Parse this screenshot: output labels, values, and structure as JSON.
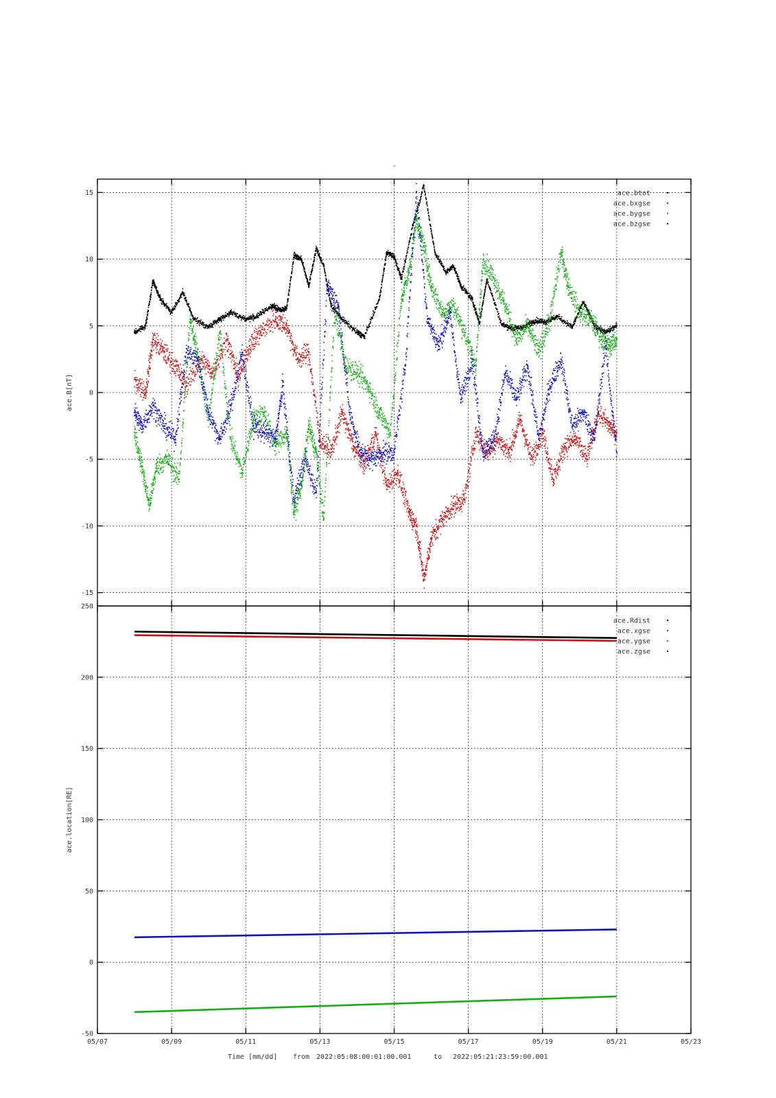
{
  "figure": {
    "title": "-",
    "footer": {
      "time_label": "Time [mm/dd]",
      "from_label": "from",
      "from_value": "2022:05:08:00:01:00.001",
      "to_label": "to",
      "to_value": "2022:05:21:23:59:00.001"
    }
  },
  "chart_data": [
    {
      "type": "scatter",
      "id": "magnetic-field",
      "ylabel": "ace.B[nT]",
      "xlim": [
        0,
        16
      ],
      "ylim": [
        -16,
        16
      ],
      "x_ticks": [
        0,
        2,
        4,
        6,
        8,
        10,
        12,
        14,
        16
      ],
      "x_tick_labels": [
        "05/07",
        "05/09",
        "05/11",
        "05/13",
        "05/15",
        "05/17",
        "05/19",
        "05/21",
        "05/23"
      ],
      "y_ticks": [
        -15,
        -10,
        -5,
        0,
        5,
        10,
        15
      ],
      "y_tick_labels": [
        "-15",
        "-10",
        "-5",
        "0",
        "5",
        "10",
        "15"
      ],
      "grid": true,
      "legend_position": "top-right",
      "x_unit": "days since 2022-05-07",
      "series": [
        {
          "name": "ace.btot",
          "color": "#000000",
          "x": [
            1.0,
            1.3,
            1.5,
            1.7,
            2.0,
            2.3,
            2.6,
            3.0,
            3.3,
            3.6,
            4.0,
            4.3,
            4.7,
            4.9,
            5.1,
            5.3,
            5.5,
            5.7,
            5.9,
            6.1,
            6.3,
            6.6,
            7.0,
            7.2,
            7.6,
            7.8,
            8.0,
            8.2,
            8.5,
            8.8,
            9.1,
            9.4,
            9.6,
            9.8,
            10.1,
            10.3,
            10.5,
            10.9,
            11.2,
            11.5,
            11.8,
            12.1,
            12.4,
            12.8,
            13.1,
            13.4,
            13.7,
            14.0
          ],
          "y": [
            4.5,
            5.0,
            8.4,
            7.0,
            6.0,
            7.5,
            5.5,
            4.9,
            5.5,
            6.0,
            5.5,
            5.7,
            6.5,
            6.2,
            6.3,
            10.3,
            10.0,
            8.0,
            10.8,
            9.5,
            6.5,
            5.5,
            4.5,
            4.2,
            7.0,
            10.5,
            10.2,
            8.5,
            12.5,
            15.5,
            10.5,
            9.0,
            9.5,
            8.0,
            7.0,
            5.2,
            8.5,
            5.1,
            4.8,
            4.9,
            5.4,
            5.3,
            5.7,
            4.9,
            6.8,
            5.0,
            4.5,
            5.0
          ]
        },
        {
          "name": "ace.bxgse",
          "color": "#d01010",
          "x": [
            1.0,
            1.3,
            1.5,
            1.8,
            2.1,
            2.4,
            2.8,
            3.1,
            3.5,
            3.8,
            4.1,
            4.4,
            4.8,
            5.1,
            5.4,
            5.7,
            6.0,
            6.3,
            6.6,
            6.9,
            7.2,
            7.5,
            7.8,
            8.1,
            8.4,
            8.6,
            8.8,
            9.0,
            9.3,
            9.6,
            9.9,
            10.2,
            10.5,
            10.8,
            11.1,
            11.4,
            11.7,
            12.0,
            12.3,
            12.6,
            12.9,
            13.2,
            13.5,
            13.8,
            14.0
          ],
          "y": [
            1.0,
            0.0,
            4.0,
            3.0,
            2.0,
            0.5,
            2.5,
            1.5,
            4.0,
            1.0,
            3.5,
            4.5,
            5.5,
            5.0,
            2.5,
            3.0,
            -3.5,
            -4.5,
            -1.5,
            -4.0,
            -5.5,
            -3.0,
            -7.0,
            -6.0,
            -9.0,
            -10.0,
            -14.0,
            -11.0,
            -9.5,
            -8.5,
            -8.0,
            -3.0,
            -4.5,
            -3.5,
            -4.5,
            -2.0,
            -5.0,
            -3.0,
            -6.5,
            -4.0,
            -3.5,
            -5.0,
            -1.5,
            -2.5,
            -3.0
          ]
        },
        {
          "name": "ace.bygse",
          "color": "#10b010",
          "x": [
            1.0,
            1.2,
            1.4,
            1.6,
            1.9,
            2.2,
            2.5,
            2.7,
            3.0,
            3.3,
            3.6,
            3.9,
            4.2,
            4.5,
            4.8,
            5.1,
            5.3,
            5.5,
            5.7,
            5.9,
            6.1,
            6.4,
            6.7,
            7.0,
            7.3,
            7.6,
            7.9,
            8.2,
            8.4,
            8.6,
            8.8,
            9.0,
            9.3,
            9.6,
            9.9,
            10.2,
            10.4,
            10.7,
            11.0,
            11.3,
            11.6,
            11.9,
            12.2,
            12.5,
            12.7,
            13.0,
            13.3,
            13.6,
            13.8,
            14.0
          ],
          "y": [
            -3.0,
            -5.5,
            -8.5,
            -5.5,
            -5.0,
            -6.5,
            5.5,
            3.0,
            -2.0,
            4.5,
            -3.5,
            -6.0,
            -2.0,
            -1.5,
            -4.0,
            -3.0,
            -9.0,
            -7.0,
            -2.5,
            -4.5,
            -9.5,
            6.0,
            2.0,
            1.5,
            0.5,
            -1.5,
            -3.0,
            7.0,
            9.0,
            13.0,
            11.0,
            8.0,
            6.0,
            6.5,
            4.5,
            2.0,
            10.0,
            8.5,
            6.5,
            4.0,
            5.0,
            3.0,
            5.5,
            10.5,
            8.0,
            6.0,
            5.5,
            4.0,
            3.5,
            4.0
          ]
        },
        {
          "name": "ace.bzgse",
          "color": "#1010c8",
          "x": [
            1.0,
            1.2,
            1.5,
            1.8,
            2.1,
            2.4,
            2.7,
            3.0,
            3.3,
            3.6,
            3.9,
            4.2,
            4.5,
            4.8,
            5.0,
            5.3,
            5.6,
            5.9,
            6.2,
            6.5,
            6.8,
            7.1,
            7.4,
            7.7,
            8.0,
            8.3,
            8.6,
            8.9,
            9.2,
            9.5,
            9.8,
            10.1,
            10.4,
            10.7,
            11.0,
            11.3,
            11.6,
            11.9,
            12.2,
            12.5,
            12.8,
            13.1,
            13.4,
            13.7,
            14.0
          ],
          "y": [
            -1.5,
            -2.5,
            -1.0,
            -2.5,
            -3.5,
            3.0,
            2.5,
            -1.5,
            -3.5,
            -1.0,
            3.0,
            -2.5,
            -3.0,
            -3.5,
            0.5,
            -8.0,
            -5.0,
            -7.5,
            8.0,
            6.5,
            -1.5,
            -4.5,
            -5.0,
            -4.5,
            -4.5,
            2.0,
            15.0,
            5.5,
            3.5,
            6.0,
            -0.5,
            2.5,
            -4.5,
            -3.5,
            1.5,
            -0.5,
            2.0,
            -3.5,
            0.5,
            2.5,
            -2.5,
            -1.5,
            -3.5,
            3.5,
            -4.5
          ]
        }
      ]
    },
    {
      "type": "line",
      "id": "location",
      "ylabel": "ace.location[RE]",
      "xlim": [
        0,
        16
      ],
      "ylim": [
        -50,
        250
      ],
      "x_ticks": [
        0,
        2,
        4,
        6,
        8,
        10,
        12,
        14,
        16
      ],
      "x_tick_labels": [
        "05/07",
        "05/09",
        "05/11",
        "05/13",
        "05/15",
        "05/17",
        "05/19",
        "05/21",
        "05/23"
      ],
      "y_ticks": [
        -50,
        0,
        50,
        100,
        150,
        200,
        250
      ],
      "y_tick_labels": [
        "-50",
        "0",
        "50",
        "100",
        "150",
        "200",
        "250"
      ],
      "grid": true,
      "legend_position": "top-right",
      "x_unit": "days since 2022-05-07",
      "series": [
        {
          "name": "ace.Rdist",
          "color": "#000000",
          "x": [
            1.0,
            14.0
          ],
          "y": [
            232.0,
            227.5
          ]
        },
        {
          "name": "ace.xgse",
          "color": "#d01010",
          "x": [
            1.0,
            14.0
          ],
          "y": [
            229.5,
            225.5
          ]
        },
        {
          "name": "ace.ygse",
          "color": "#10b010",
          "x": [
            1.0,
            14.0
          ],
          "y": [
            -35.0,
            -24.0
          ]
        },
        {
          "name": "ace.zgse",
          "color": "#1010c8",
          "x": [
            1.0,
            14.0
          ],
          "y": [
            17.5,
            23.0
          ]
        }
      ]
    }
  ]
}
